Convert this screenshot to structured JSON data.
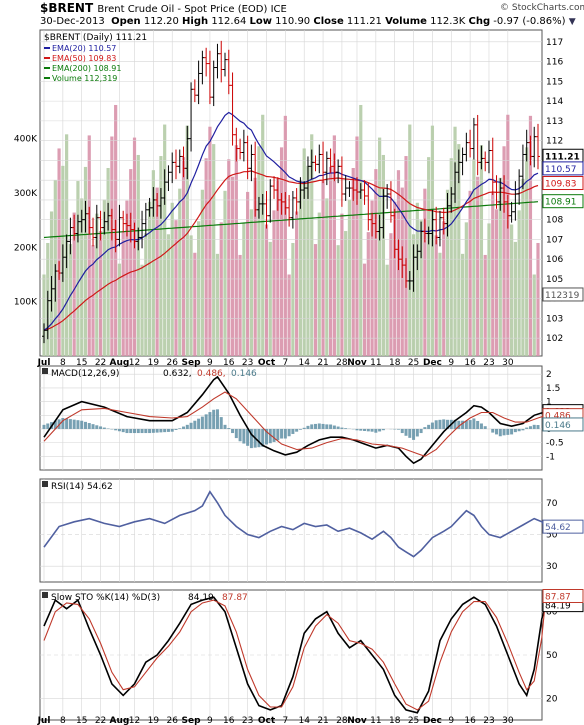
{
  "header": {
    "symbol": "$BRENT",
    "name": "Brent Crude Oil - Spot Price (EOD) ICE",
    "watermark": "© StockCharts.com",
    "date": "30-Dec-2013",
    "open_label": "Open",
    "open": "112.20",
    "high_label": "High",
    "high": "112.64",
    "low_label": "Low",
    "low": "110.90",
    "close_label": "Close",
    "close": "111.21",
    "volume_label": "Volume",
    "volume": "112.3K",
    "chg_label": "Chg",
    "chg": "-0.97 (-0.86%)"
  },
  "colors": {
    "up_bar": "#000000",
    "down_bar": "#cc0000",
    "ema20": "#1f1fa0",
    "ema50": "#d01818",
    "ema200": "#0b7a0b",
    "volume_up": "#b4cba6",
    "volume_down": "#d892aa",
    "macd_hist": "#5f8fa5",
    "panel_bg": "#ffffff",
    "grid": "#d6d6d6"
  },
  "legend": {
    "price": "$BRENT (Daily) 111.21",
    "ema20": "EMA(20) 110.57",
    "ema50": "EMA(50) 109.83",
    "ema200": "EMA(200) 108.91",
    "volume": "Volume 112,319"
  },
  "macd_legend": {
    "label": "MACD(12,26,9)",
    "v1": "0.632,",
    "v2": "0.486,",
    "v3": "0.146"
  },
  "rsi_legend": {
    "label": "RSI(14) 54.62"
  },
  "sto_legend": {
    "label": "Slow STO %K(14) %D(3)",
    "v1": "84.19,",
    "v2": "87.87"
  },
  "chart_data": [
    {
      "type": "candlestick",
      "title": "$BRENT (Daily)",
      "x_labels": [
        "Jul",
        "8",
        "15",
        "22",
        "Aug",
        "12",
        "19",
        "26",
        "Sep",
        "9",
        "16",
        "23",
        "Oct",
        "7",
        "14",
        "21",
        "28",
        "Nov",
        "11",
        "18",
        "25",
        "Dec",
        "9",
        "16",
        "23",
        "30"
      ],
      "y_ticks": [
        102,
        103,
        104,
        105,
        106,
        107,
        108,
        109,
        110,
        111,
        112,
        113,
        114,
        115,
        116,
        117
      ],
      "ylim": [
        101.1,
        117.6
      ],
      "volume_ticks": [
        "100K",
        "200K",
        "300K",
        "400K"
      ],
      "volume_max": 600000,
      "close": [
        102.4,
        103.9,
        104.5,
        105.4,
        105.3,
        106.1,
        106.9,
        107.6,
        107.3,
        107.9,
        108.0,
        108.3,
        107.6,
        107.1,
        108.1,
        107.6,
        107.9,
        108.2,
        107.5,
        107.0,
        108.1,
        107.8,
        107.7,
        107.5,
        106.9,
        107.1,
        107.8,
        108.5,
        108.6,
        109.0,
        108.7,
        109.1,
        109.9,
        110.4,
        110.9,
        110.7,
        111.2,
        110.6,
        112.1,
        114.6,
        114.3,
        115.4,
        116.2,
        115.9,
        114.2,
        115.7,
        116.4,
        115.6,
        116.1,
        114.8,
        112.3,
        111.6,
        111.4,
        111.9,
        110.6,
        111.3,
        108.5,
        108.8,
        108.8,
        108.2,
        109.7,
        109.5,
        109.0,
        108.9,
        108.6,
        108.1,
        109.1,
        108.9,
        109.5,
        109.6,
        110.7,
        110.9,
        110.8,
        111.3,
        110.4,
        111.1,
        110.7,
        110.4,
        110.7,
        109.3,
        109.6,
        109.6,
        109.5,
        109.4,
        109.5,
        109.2,
        108.0,
        107.8,
        107.4,
        107.6,
        109.2,
        109.3,
        108.2,
        106.5,
        106.0,
        105.7,
        104.9,
        104.9,
        106.1,
        106.4,
        107.4,
        107.3,
        107.3,
        108.0,
        107.1,
        108.1,
        107.8,
        108.7,
        109.3,
        110.4,
        110.9,
        111.3,
        111.9,
        111.6,
        112.8,
        110.9,
        111.1,
        110.9,
        111.5,
        109.9,
        108.9,
        109.6,
        108.9,
        108.2,
        108.4,
        109.3,
        110.2,
        111.3,
        111.9,
        111.2,
        112.2,
        111.2
      ]
    },
    {
      "type": "line",
      "title": "MACD(12,26,9)",
      "y_ticks": [
        -1.0,
        -0.5,
        0.0,
        0.5,
        1.0,
        1.5,
        2.0
      ],
      "ylim": [
        -1.5,
        2.3
      ],
      "series": [
        {
          "name": "MACD",
          "points": [
            [
              0,
              -0.3
            ],
            [
              5,
              0.7
            ],
            [
              10,
              1.0
            ],
            [
              16,
              0.8
            ],
            [
              22,
              0.45
            ],
            [
              28,
              0.3
            ],
            [
              34,
              0.3
            ],
            [
              38,
              0.6
            ],
            [
              42,
              1.25
            ],
            [
              45,
              1.8
            ],
            [
              46,
              1.9
            ],
            [
              49,
              1.3
            ],
            [
              52,
              0.5
            ],
            [
              55,
              -0.2
            ],
            [
              58,
              -0.6
            ],
            [
              61,
              -0.8
            ],
            [
              64,
              -0.95
            ],
            [
              67,
              -0.85
            ],
            [
              70,
              -0.6
            ],
            [
              73,
              -0.4
            ],
            [
              76,
              -0.3
            ],
            [
              79,
              -0.3
            ],
            [
              82,
              -0.4
            ],
            [
              85,
              -0.55
            ],
            [
              88,
              -0.7
            ],
            [
              91,
              -0.6
            ],
            [
              94,
              -0.7
            ],
            [
              96,
              -1.0
            ],
            [
              98,
              -1.25
            ],
            [
              100,
              -1.1
            ],
            [
              103,
              -0.6
            ],
            [
              106,
              -0.1
            ],
            [
              109,
              0.3
            ],
            [
              112,
              0.6
            ],
            [
              114,
              0.85
            ],
            [
              116,
              0.8
            ],
            [
              118,
              0.6
            ],
            [
              121,
              0.2
            ],
            [
              124,
              0.1
            ],
            [
              127,
              0.2
            ],
            [
              130,
              0.5
            ],
            [
              133,
              0.63
            ]
          ]
        },
        {
          "name": "Signal",
          "points": [
            [
              0,
              -0.45
            ],
            [
              5,
              0.3
            ],
            [
              10,
              0.7
            ],
            [
              16,
              0.75
            ],
            [
              22,
              0.6
            ],
            [
              28,
              0.45
            ],
            [
              34,
              0.4
            ],
            [
              38,
              0.45
            ],
            [
              42,
              0.8
            ],
            [
              45,
              1.1
            ],
            [
              48,
              1.35
            ],
            [
              51,
              1.1
            ],
            [
              55,
              0.5
            ],
            [
              59,
              -0.1
            ],
            [
              63,
              -0.55
            ],
            [
              67,
              -0.75
            ],
            [
              71,
              -0.7
            ],
            [
              75,
              -0.5
            ],
            [
              79,
              -0.35
            ],
            [
              83,
              -0.4
            ],
            [
              87,
              -0.55
            ],
            [
              91,
              -0.6
            ],
            [
              95,
              -0.7
            ],
            [
              99,
              -0.9
            ],
            [
              101,
              -1.0
            ],
            [
              104,
              -0.75
            ],
            [
              107,
              -0.3
            ],
            [
              110,
              0.1
            ],
            [
              113,
              0.4
            ],
            [
              116,
              0.6
            ],
            [
              119,
              0.6
            ],
            [
              122,
              0.4
            ],
            [
              125,
              0.25
            ],
            [
              128,
              0.25
            ],
            [
              131,
              0.4
            ],
            [
              133,
              0.49
            ]
          ]
        }
      ]
    },
    {
      "type": "line",
      "title": "RSI(14)",
      "y_ticks": [
        30,
        50,
        70
      ],
      "ylim": [
        20,
        85
      ],
      "series": [
        {
          "name": "RSI",
          "points": [
            [
              0,
              42
            ],
            [
              4,
              55
            ],
            [
              8,
              58
            ],
            [
              12,
              60
            ],
            [
              16,
              57
            ],
            [
              20,
              55
            ],
            [
              24,
              58
            ],
            [
              28,
              60
            ],
            [
              32,
              57
            ],
            [
              36,
              62
            ],
            [
              40,
              65
            ],
            [
              42,
              68
            ],
            [
              44,
              77
            ],
            [
              46,
              70
            ],
            [
              48,
              62
            ],
            [
              51,
              55
            ],
            [
              54,
              50
            ],
            [
              57,
              48
            ],
            [
              60,
              52
            ],
            [
              63,
              55
            ],
            [
              66,
              53
            ],
            [
              69,
              57
            ],
            [
              72,
              55
            ],
            [
              75,
              56
            ],
            [
              78,
              52
            ],
            [
              81,
              54
            ],
            [
              84,
              51
            ],
            [
              87,
              47
            ],
            [
              90,
              52
            ],
            [
              92,
              48
            ],
            [
              94,
              42
            ],
            [
              96,
              39
            ],
            [
              98,
              36
            ],
            [
              100,
              40
            ],
            [
              103,
              48
            ],
            [
              106,
              52
            ],
            [
              108,
              55
            ],
            [
              110,
              60
            ],
            [
              112,
              65
            ],
            [
              114,
              62
            ],
            [
              116,
              55
            ],
            [
              118,
              50
            ],
            [
              121,
              48
            ],
            [
              124,
              52
            ],
            [
              127,
              56
            ],
            [
              130,
              60
            ],
            [
              132,
              58
            ],
            [
              133,
              54.6
            ]
          ]
        }
      ]
    },
    {
      "type": "line",
      "title": "Slow STO %K(14) %D(3)",
      "y_ticks": [
        20,
        50,
        80
      ],
      "ylim": [
        5,
        95
      ],
      "series": [
        {
          "name": "%K",
          "points": [
            [
              0,
              70
            ],
            [
              3,
              88
            ],
            [
              6,
              82
            ],
            [
              9,
              88
            ],
            [
              12,
              68
            ],
            [
              15,
              50
            ],
            [
              18,
              30
            ],
            [
              21,
              22
            ],
            [
              24,
              30
            ],
            [
              27,
              45
            ],
            [
              30,
              50
            ],
            [
              33,
              60
            ],
            [
              36,
              72
            ],
            [
              39,
              85
            ],
            [
              42,
              88
            ],
            [
              45,
              90
            ],
            [
              48,
              80
            ],
            [
              51,
              55
            ],
            [
              54,
              30
            ],
            [
              57,
              15
            ],
            [
              60,
              12
            ],
            [
              63,
              15
            ],
            [
              66,
              35
            ],
            [
              69,
              65
            ],
            [
              72,
              75
            ],
            [
              75,
              80
            ],
            [
              78,
              65
            ],
            [
              81,
              55
            ],
            [
              84,
              60
            ],
            [
              87,
              50
            ],
            [
              90,
              40
            ],
            [
              93,
              22
            ],
            [
              96,
              12
            ],
            [
              99,
              10
            ],
            [
              102,
              25
            ],
            [
              105,
              60
            ],
            [
              108,
              75
            ],
            [
              111,
              85
            ],
            [
              114,
              90
            ],
            [
              117,
              85
            ],
            [
              120,
              70
            ],
            [
              123,
              50
            ],
            [
              126,
              30
            ],
            [
              128,
              22
            ],
            [
              130,
              40
            ],
            [
              132,
              75
            ],
            [
              133,
              84
            ]
          ]
        },
        {
          "name": "%D",
          "points": [
            [
              0,
              60
            ],
            [
              3,
              80
            ],
            [
              6,
              86
            ],
            [
              9,
              85
            ],
            [
              12,
              75
            ],
            [
              15,
              58
            ],
            [
              18,
              38
            ],
            [
              21,
              26
            ],
            [
              24,
              28
            ],
            [
              27,
              38
            ],
            [
              30,
              48
            ],
            [
              33,
              56
            ],
            [
              36,
              66
            ],
            [
              39,
              80
            ],
            [
              42,
              86
            ],
            [
              45,
              88
            ],
            [
              48,
              84
            ],
            [
              51,
              66
            ],
            [
              54,
              40
            ],
            [
              57,
              22
            ],
            [
              60,
              14
            ],
            [
              63,
              14
            ],
            [
              66,
              28
            ],
            [
              69,
              55
            ],
            [
              72,
              70
            ],
            [
              75,
              78
            ],
            [
              78,
              72
            ],
            [
              81,
              60
            ],
            [
              84,
              58
            ],
            [
              87,
              54
            ],
            [
              90,
              45
            ],
            [
              93,
              30
            ],
            [
              96,
              16
            ],
            [
              99,
              12
            ],
            [
              102,
              18
            ],
            [
              105,
              45
            ],
            [
              108,
              66
            ],
            [
              111,
              80
            ],
            [
              114,
              87
            ],
            [
              117,
              87
            ],
            [
              120,
              76
            ],
            [
              123,
              58
            ],
            [
              126,
              38
            ],
            [
              128,
              26
            ],
            [
              130,
              32
            ],
            [
              132,
              62
            ],
            [
              133,
              88
            ]
          ]
        }
      ]
    }
  ],
  "value_boxes": {
    "price_close": "111.21",
    "ema20": "110.57",
    "ema50": "109.83",
    "ema200": "108.91",
    "volume": "112319",
    "macd1": "0.632",
    "macd2": "0.486",
    "macd3": "0.146",
    "rsi": "54.62",
    "sto_k": "84.19",
    "sto_d": "87.87"
  }
}
